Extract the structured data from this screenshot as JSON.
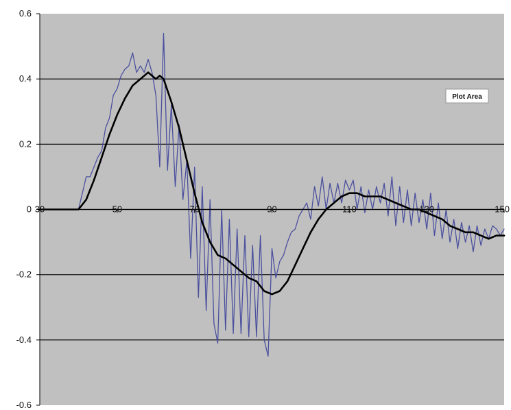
{
  "tooltip": {
    "text": "Plot Area"
  },
  "colors": {
    "plot_area": "#c0c0c0",
    "gridline": "#000000",
    "raw_series": "#4a4f9e",
    "smoothed_series": "#000000",
    "tooltip_bg": "#ffffff"
  },
  "chart_data": {
    "type": "line",
    "title": "",
    "xlabel": "",
    "ylabel": "",
    "xlim": [
      30,
      150
    ],
    "ylim": [
      -0.6,
      0.6
    ],
    "grid": "horizontal major gridlines",
    "legend": "none",
    "x_ticks": [
      {
        "value": 30,
        "label": "30"
      },
      {
        "value": 50,
        "label": "50"
      },
      {
        "value": 70,
        "label": "70"
      },
      {
        "value": 90,
        "label": "90"
      },
      {
        "value": 110,
        "label": "110"
      },
      {
        "value": 130,
        "label": "130"
      },
      {
        "value": 150,
        "label": "150"
      }
    ],
    "y_ticks": [
      {
        "value": 0.6,
        "label": "0.6"
      },
      {
        "value": 0.4,
        "label": "0.4"
      },
      {
        "value": 0.2,
        "label": "0.2"
      },
      {
        "value": 0,
        "label": "0"
      },
      {
        "value": -0.2,
        "label": "-0.2"
      },
      {
        "value": -0.4,
        "label": "-0.4"
      },
      {
        "value": -0.6,
        "label": "-0.6"
      }
    ],
    "series": [
      {
        "color": "#4a4f9e",
        "points": [
          [
            30,
            0
          ],
          [
            40,
            0
          ],
          [
            41,
            0.05
          ],
          [
            42,
            0.1
          ],
          [
            43,
            0.1
          ],
          [
            44,
            0.13
          ],
          [
            45,
            0.16
          ],
          [
            46,
            0.18
          ],
          [
            47,
            0.25
          ],
          [
            48,
            0.28
          ],
          [
            49,
            0.35
          ],
          [
            50,
            0.37
          ],
          [
            51,
            0.41
          ],
          [
            52,
            0.43
          ],
          [
            53,
            0.44
          ],
          [
            54,
            0.48
          ],
          [
            55,
            0.42
          ],
          [
            56,
            0.44
          ],
          [
            57,
            0.42
          ],
          [
            58,
            0.46
          ],
          [
            59,
            0.42
          ],
          [
            60,
            0.35
          ],
          [
            61,
            0.13
          ],
          [
            62,
            0.54
          ],
          [
            63,
            0.12
          ],
          [
            64,
            0.32
          ],
          [
            65,
            0.07
          ],
          [
            66,
            0.26
          ],
          [
            67,
            0.03
          ],
          [
            68,
            0.15
          ],
          [
            69,
            -0.15
          ],
          [
            70,
            0.13
          ],
          [
            71,
            -0.27
          ],
          [
            72,
            0.07
          ],
          [
            73,
            -0.31
          ],
          [
            74,
            0.03
          ],
          [
            75,
            -0.35
          ],
          [
            76,
            -0.41
          ],
          [
            77,
            0.0
          ],
          [
            78,
            -0.37
          ],
          [
            79,
            -0.03
          ],
          [
            80,
            -0.38
          ],
          [
            81,
            -0.06
          ],
          [
            82,
            -0.38
          ],
          [
            83,
            -0.08
          ],
          [
            84,
            -0.39
          ],
          [
            85,
            -0.11
          ],
          [
            86,
            -0.39
          ],
          [
            87,
            -0.08
          ],
          [
            88,
            -0.4
          ],
          [
            89,
            -0.45
          ],
          [
            90,
            -0.12
          ],
          [
            91,
            -0.21
          ],
          [
            92,
            -0.16
          ],
          [
            93,
            -0.14
          ],
          [
            94,
            -0.1
          ],
          [
            95,
            -0.07
          ],
          [
            96,
            -0.06
          ],
          [
            97,
            -0.02
          ],
          [
            98,
            0.0
          ],
          [
            99,
            0.02
          ],
          [
            100,
            -0.03
          ],
          [
            101,
            0.07
          ],
          [
            102,
            0.01
          ],
          [
            103,
            0.1
          ],
          [
            104,
            0.0
          ],
          [
            105,
            0.08
          ],
          [
            106,
            0.02
          ],
          [
            107,
            0.08
          ],
          [
            108,
            0.02
          ],
          [
            109,
            0.09
          ],
          [
            110,
            0.06
          ],
          [
            111,
            0.09
          ],
          [
            112,
            0.0
          ],
          [
            113,
            0.07
          ],
          [
            114,
            -0.01
          ],
          [
            115,
            0.06
          ],
          [
            116,
            0.0
          ],
          [
            117,
            0.07
          ],
          [
            118,
            0.02
          ],
          [
            119,
            0.08
          ],
          [
            120,
            -0.02
          ],
          [
            121,
            0.1
          ],
          [
            122,
            -0.05
          ],
          [
            123,
            0.07
          ],
          [
            124,
            -0.04
          ],
          [
            125,
            0.06
          ],
          [
            126,
            -0.05
          ],
          [
            127,
            0.05
          ],
          [
            128,
            -0.04
          ],
          [
            129,
            0.03
          ],
          [
            130,
            -0.06
          ],
          [
            131,
            0.05
          ],
          [
            132,
            -0.08
          ],
          [
            133,
            0.02
          ],
          [
            134,
            -0.09
          ],
          [
            135,
            0.0
          ],
          [
            136,
            -0.1
          ],
          [
            137,
            -0.03
          ],
          [
            138,
            -0.12
          ],
          [
            139,
            -0.04
          ],
          [
            140,
            -0.1
          ],
          [
            141,
            -0.05
          ],
          [
            142,
            -0.13
          ],
          [
            143,
            -0.05
          ],
          [
            144,
            -0.11
          ],
          [
            145,
            -0.06
          ],
          [
            146,
            -0.09
          ],
          [
            147,
            -0.05
          ],
          [
            148,
            -0.06
          ],
          [
            149,
            -0.08
          ],
          [
            150,
            -0.06
          ]
        ]
      },
      {
        "color": "#000000",
        "points": [
          [
            30,
            0
          ],
          [
            40,
            0
          ],
          [
            42,
            0.03
          ],
          [
            44,
            0.09
          ],
          [
            46,
            0.16
          ],
          [
            48,
            0.23
          ],
          [
            50,
            0.29
          ],
          [
            52,
            0.34
          ],
          [
            54,
            0.38
          ],
          [
            56,
            0.4
          ],
          [
            58,
            0.42
          ],
          [
            60,
            0.4
          ],
          [
            61,
            0.41
          ],
          [
            62,
            0.4
          ],
          [
            64,
            0.33
          ],
          [
            66,
            0.25
          ],
          [
            68,
            0.15
          ],
          [
            70,
            0.05
          ],
          [
            72,
            -0.04
          ],
          [
            74,
            -0.1
          ],
          [
            76,
            -0.14
          ],
          [
            78,
            -0.15
          ],
          [
            80,
            -0.17
          ],
          [
            82,
            -0.19
          ],
          [
            84,
            -0.21
          ],
          [
            86,
            -0.22
          ],
          [
            88,
            -0.25
          ],
          [
            90,
            -0.26
          ],
          [
            92,
            -0.25
          ],
          [
            94,
            -0.22
          ],
          [
            96,
            -0.17
          ],
          [
            98,
            -0.12
          ],
          [
            100,
            -0.07
          ],
          [
            102,
            -0.03
          ],
          [
            104,
            0.0
          ],
          [
            106,
            0.02
          ],
          [
            108,
            0.04
          ],
          [
            110,
            0.05
          ],
          [
            112,
            0.05
          ],
          [
            114,
            0.04
          ],
          [
            116,
            0.04
          ],
          [
            118,
            0.04
          ],
          [
            120,
            0.03
          ],
          [
            122,
            0.02
          ],
          [
            124,
            0.01
          ],
          [
            126,
            0.0
          ],
          [
            128,
            0.0
          ],
          [
            130,
            -0.01
          ],
          [
            132,
            -0.02
          ],
          [
            134,
            -0.03
          ],
          [
            136,
            -0.05
          ],
          [
            138,
            -0.06
          ],
          [
            140,
            -0.07
          ],
          [
            142,
            -0.07
          ],
          [
            144,
            -0.08
          ],
          [
            146,
            -0.09
          ],
          [
            148,
            -0.08
          ],
          [
            150,
            -0.08
          ]
        ]
      }
    ]
  }
}
